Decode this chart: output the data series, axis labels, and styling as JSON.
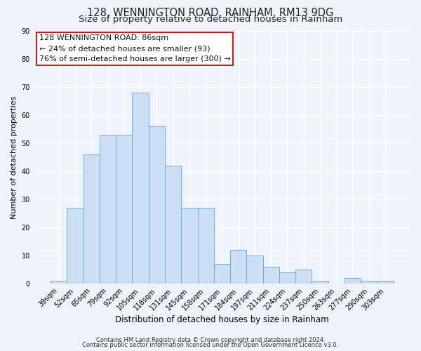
{
  "title": "128, WENNINGTON ROAD, RAINHAM, RM13 9DG",
  "subtitle": "Size of property relative to detached houses in Rainham",
  "xlabel": "Distribution of detached houses by size in Rainham",
  "ylabel": "Number of detached properties",
  "bar_labels": [
    "39sqm",
    "52sqm",
    "65sqm",
    "79sqm",
    "92sqm",
    "105sqm",
    "118sqm",
    "131sqm",
    "145sqm",
    "158sqm",
    "171sqm",
    "184sqm",
    "197sqm",
    "211sqm",
    "224sqm",
    "237sqm",
    "250sqm",
    "263sqm",
    "277sqm",
    "290sqm",
    "303sqm"
  ],
  "bar_values": [
    1,
    27,
    46,
    53,
    53,
    68,
    56,
    42,
    27,
    27,
    7,
    12,
    10,
    6,
    4,
    5,
    1,
    0,
    2,
    1,
    1
  ],
  "bar_color": "#ccdff5",
  "bar_edge_color": "#6aaed6",
  "ylim": [
    0,
    90
  ],
  "yticks": [
    0,
    10,
    20,
    30,
    40,
    50,
    60,
    70,
    80,
    90
  ],
  "annotation_line1": "128 WENNINGTON ROAD: 86sqm",
  "annotation_line2": "← 24% of detached houses are smaller (93)",
  "annotation_line3": "76% of semi-detached houses are larger (300) →",
  "footnote1": "Contains HM Land Registry data © Crown copyright and database right 2024.",
  "footnote2": "Contains public sector information licensed under the Open Government Licence v3.0.",
  "bg_color": "#eef2f9",
  "grid_color": "#ffffff",
  "title_fontsize": 10.5,
  "subtitle_fontsize": 9.5,
  "xlabel_fontsize": 8.5,
  "ylabel_fontsize": 8.0,
  "tick_fontsize": 7.0,
  "annotation_fontsize": 8.0,
  "footnote_fontsize": 6.0
}
